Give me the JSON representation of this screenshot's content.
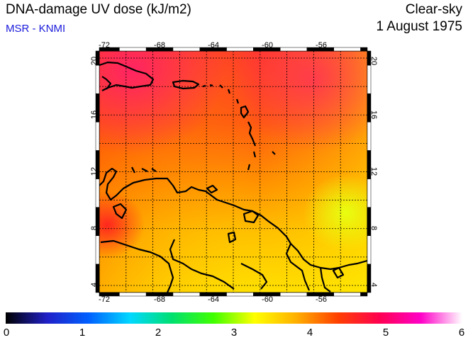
{
  "header": {
    "title": "DNA-damage UV dose (kJ/m2)",
    "credit": "MSR - KNMI",
    "sky": "Clear-sky",
    "date": "1 August 1975"
  },
  "map": {
    "lon_range": [
      -72,
      -52
    ],
    "lat_range": [
      3.5,
      20.5
    ],
    "lon_ticks": [
      "-72",
      "-68",
      "-64",
      "-60",
      "-56"
    ],
    "lat_ticks": [
      "4",
      "8",
      "12",
      "16",
      "20"
    ],
    "grid": true,
    "coastline_color": "#000000"
  },
  "colorbar": {
    "ticks": [
      "0",
      "1",
      "2",
      "3",
      "4",
      "5",
      "6"
    ],
    "range": [
      0,
      6
    ],
    "colors": [
      "#000000",
      "#2020c8",
      "#0060ff",
      "#00d8ff",
      "#00e070",
      "#40ff00",
      "#ffff00",
      "#ffb000",
      "#ff4000",
      "#ff0050",
      "#ff00c8",
      "#ffffff"
    ]
  }
}
